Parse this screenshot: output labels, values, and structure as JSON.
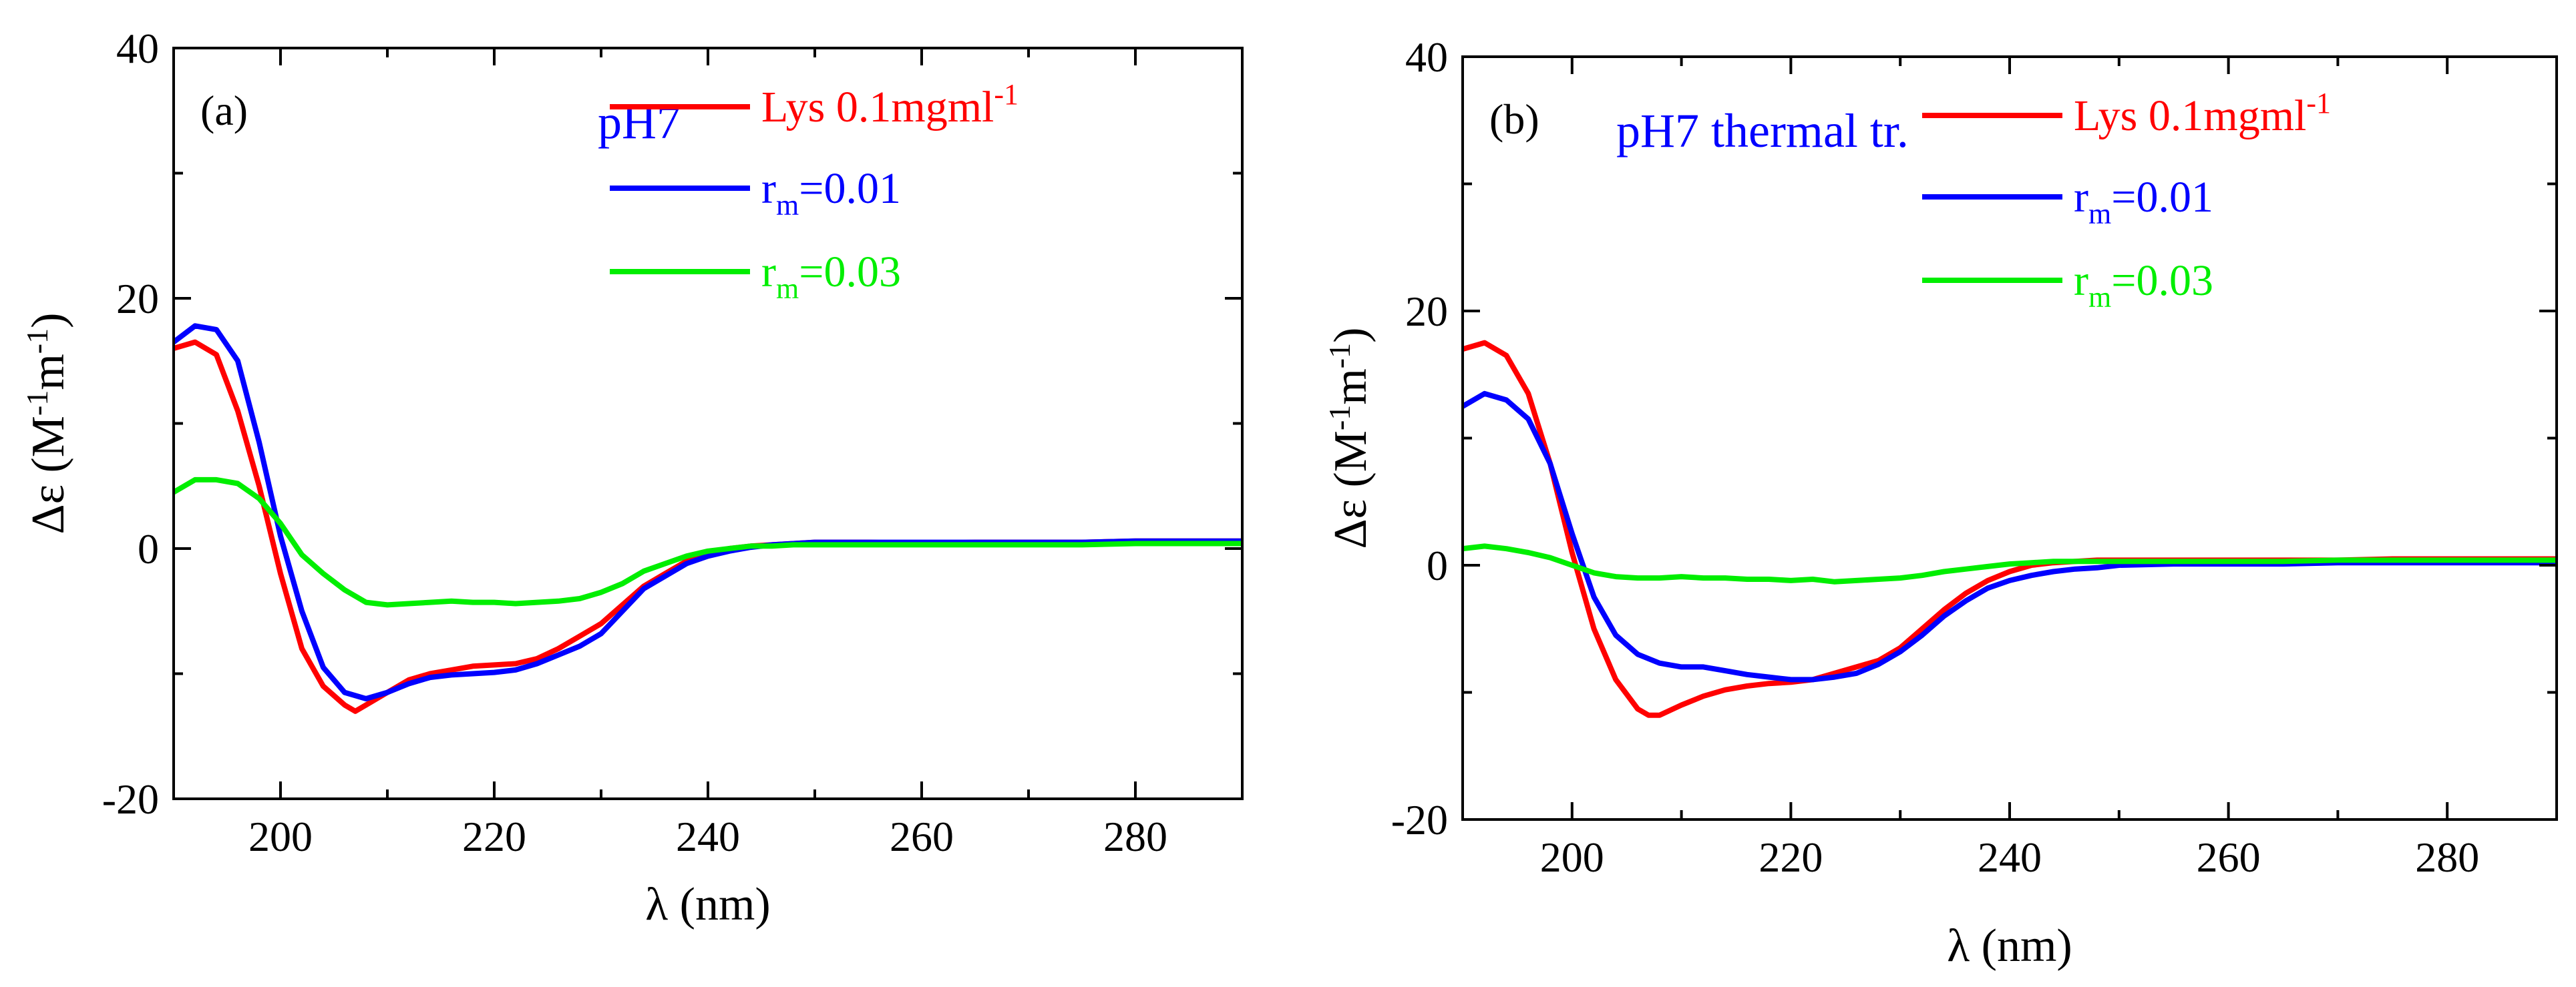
{
  "chart_data": [
    {
      "type": "line",
      "panel_label": "(a)",
      "annotation": "pH7",
      "title": "",
      "xlabel": "λ (nm)",
      "ylabel": {
        "base": "Δε (M",
        "exp1": "-1",
        "mid": "m",
        "exp2": "-1",
        "close": ")"
      },
      "xlim": [
        190,
        290
      ],
      "ylim": [
        -20,
        40
      ],
      "xticks": [
        200,
        220,
        240,
        260,
        280
      ],
      "yticks": [
        -20,
        0,
        20,
        40
      ],
      "ytick_labels": [
        "-20",
        "0",
        "20",
        "40"
      ],
      "legend_position": "top-right",
      "series": [
        {
          "name": "Lys 0.1mgml-1",
          "legend": {
            "text": "Lys 0.1mgml",
            "sup": "-1"
          },
          "color": "#ff0000",
          "x": [
            190,
            192,
            194,
            196,
            198,
            200,
            202,
            204,
            206,
            207,
            208,
            210,
            212,
            214,
            216,
            218,
            220,
            222,
            224,
            226,
            228,
            230,
            232,
            234,
            236,
            238,
            240,
            242,
            244,
            246,
            248,
            250,
            255,
            260,
            265,
            270,
            275,
            280,
            285,
            290
          ],
          "y": [
            16,
            16.5,
            15.5,
            11,
            5,
            -2,
            -8,
            -11,
            -12.5,
            -13,
            -12.5,
            -11.5,
            -10.5,
            -10,
            -9.7,
            -9.4,
            -9.3,
            -9.2,
            -8.8,
            -8,
            -7,
            -6,
            -4.5,
            -3,
            -2,
            -1,
            -0.5,
            0,
            0.2,
            0.3,
            0.4,
            0.5,
            0.5,
            0.4,
            0.5,
            0.5,
            0.5,
            0.6,
            0.6,
            0.6
          ]
        },
        {
          "name": "rm=0.01",
          "legend": {
            "text": "r",
            "sub": "m",
            "tail": "=0.01"
          },
          "color": "#0000ff",
          "x": [
            190,
            192,
            194,
            196,
            198,
            200,
            202,
            204,
            206,
            208,
            210,
            212,
            214,
            216,
            218,
            220,
            222,
            224,
            226,
            228,
            230,
            232,
            234,
            236,
            238,
            240,
            242,
            244,
            246,
            248,
            250,
            255,
            260,
            265,
            270,
            275,
            280,
            285,
            290
          ],
          "y": [
            16.5,
            17.8,
            17.5,
            15,
            8.5,
            1,
            -5,
            -9.5,
            -11.5,
            -12,
            -11.5,
            -10.8,
            -10.3,
            -10.1,
            -10,
            -9.9,
            -9.7,
            -9.2,
            -8.5,
            -7.8,
            -6.8,
            -5,
            -3.2,
            -2.2,
            -1.2,
            -0.6,
            -0.2,
            0.1,
            0.3,
            0.4,
            0.5,
            0.5,
            0.5,
            0.5,
            0.5,
            0.5,
            0.6,
            0.6,
            0.6
          ]
        },
        {
          "name": "rm=0.03",
          "legend": {
            "text": "r",
            "sub": "m",
            "tail": "=0.03"
          },
          "color": "#00ee00",
          "x": [
            190,
            192,
            194,
            196,
            198,
            200,
            202,
            204,
            206,
            208,
            210,
            212,
            214,
            216,
            218,
            220,
            222,
            224,
            226,
            228,
            230,
            232,
            234,
            236,
            238,
            240,
            242,
            244,
            246,
            248,
            250,
            255,
            260,
            265,
            270,
            275,
            280,
            285,
            290
          ],
          "y": [
            4.5,
            5.5,
            5.5,
            5.2,
            4,
            2,
            -0.5,
            -2,
            -3.3,
            -4.3,
            -4.5,
            -4.4,
            -4.3,
            -4.2,
            -4.3,
            -4.3,
            -4.4,
            -4.3,
            -4.2,
            -4,
            -3.5,
            -2.8,
            -1.8,
            -1.2,
            -0.6,
            -0.2,
            0,
            0.2,
            0.2,
            0.3,
            0.3,
            0.3,
            0.3,
            0.3,
            0.3,
            0.3,
            0.4,
            0.4,
            0.4
          ]
        }
      ]
    },
    {
      "type": "line",
      "panel_label": "(b)",
      "annotation": "pH7 thermal tr.",
      "title": "",
      "xlabel": "λ (nm)",
      "ylabel": {
        "base": "Δε (M",
        "exp1": "-1",
        "mid": "m",
        "exp2": "-1",
        "close": ")"
      },
      "xlim": [
        190,
        290
      ],
      "ylim": [
        -20,
        40
      ],
      "xticks": [
        200,
        220,
        240,
        260,
        280
      ],
      "yticks": [
        -20,
        0,
        20,
        40
      ],
      "ytick_labels": [
        "-20",
        "0",
        "20",
        "40"
      ],
      "legend_position": "top-right",
      "series": [
        {
          "name": "Lys 0.1mgml-1",
          "legend": {
            "text": "Lys 0.1mgml",
            "sup": "-1"
          },
          "color": "#ff0000",
          "x": [
            190,
            192,
            194,
            196,
            198,
            200,
            202,
            204,
            206,
            207,
            208,
            210,
            212,
            214,
            216,
            218,
            220,
            222,
            224,
            226,
            228,
            230,
            232,
            234,
            236,
            238,
            240,
            242,
            244,
            246,
            248,
            250,
            255,
            260,
            265,
            270,
            275,
            280,
            285,
            290
          ],
          "y": [
            17,
            17.5,
            16.5,
            13.5,
            8,
            1,
            -5,
            -9,
            -11.3,
            -11.8,
            -11.8,
            -11,
            -10.3,
            -9.8,
            -9.5,
            -9.3,
            -9.2,
            -9,
            -8.5,
            -8,
            -7.5,
            -6.5,
            -5,
            -3.5,
            -2.2,
            -1.2,
            -0.5,
            0,
            0.2,
            0.3,
            0.4,
            0.4,
            0.4,
            0.4,
            0.4,
            0.4,
            0.5,
            0.5,
            0.5,
            0.5
          ]
        },
        {
          "name": "rm=0.01",
          "legend": {
            "text": "r",
            "sub": "m",
            "tail": "=0.01"
          },
          "color": "#0000ff",
          "x": [
            190,
            192,
            194,
            196,
            198,
            200,
            202,
            204,
            206,
            208,
            210,
            212,
            214,
            216,
            218,
            220,
            222,
            224,
            226,
            228,
            230,
            232,
            234,
            236,
            238,
            240,
            242,
            244,
            246,
            248,
            250,
            255,
            260,
            265,
            270,
            275,
            280,
            285,
            290
          ],
          "y": [
            12.5,
            13.5,
            13,
            11.5,
            8,
            2.5,
            -2.5,
            -5.5,
            -7,
            -7.7,
            -8,
            -8,
            -8.3,
            -8.6,
            -8.8,
            -9,
            -9,
            -8.8,
            -8.5,
            -7.8,
            -6.8,
            -5.5,
            -4,
            -2.8,
            -1.8,
            -1.2,
            -0.8,
            -0.5,
            -0.3,
            -0.2,
            0,
            0.1,
            0.1,
            0.1,
            0.2,
            0.2,
            0.2,
            0.2,
            0.2
          ]
        },
        {
          "name": "rm=0.03",
          "legend": {
            "text": "r",
            "sub": "m",
            "tail": "=0.03"
          },
          "color": "#00ee00",
          "x": [
            190,
            192,
            194,
            196,
            198,
            200,
            202,
            204,
            206,
            208,
            210,
            212,
            214,
            216,
            218,
            220,
            222,
            224,
            226,
            228,
            230,
            232,
            234,
            236,
            238,
            240,
            242,
            244,
            246,
            248,
            250,
            255,
            260,
            265,
            270,
            275,
            280,
            285,
            290
          ],
          "y": [
            1.3,
            1.5,
            1.3,
            1,
            0.6,
            0,
            -0.6,
            -0.9,
            -1,
            -1,
            -0.9,
            -1,
            -1,
            -1.1,
            -1.1,
            -1.2,
            -1.1,
            -1.3,
            -1.2,
            -1.1,
            -1,
            -0.8,
            -0.5,
            -0.3,
            -0.1,
            0.1,
            0.2,
            0.3,
            0.3,
            0.3,
            0.3,
            0.3,
            0.3,
            0.3,
            0.4,
            0.4,
            0.4,
            0.4,
            0.4
          ]
        }
      ]
    }
  ]
}
